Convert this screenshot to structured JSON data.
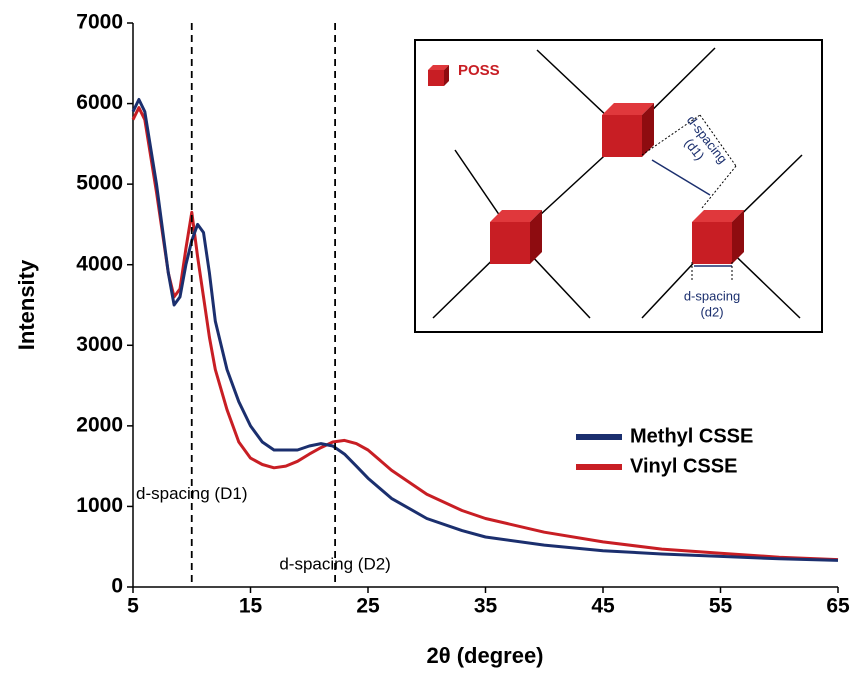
{
  "chart_data": {
    "type": "line",
    "x_label": "2θ (degree)",
    "y_label": "Intensity",
    "x": [
      5,
      5.5,
      6,
      7,
      8,
      8.5,
      9,
      9.5,
      10,
      10.5,
      11,
      11.5,
      12,
      13,
      14,
      15,
      16,
      17,
      18,
      19,
      20,
      21,
      22,
      23,
      24,
      25,
      27,
      30,
      33,
      35,
      40,
      45,
      50,
      55,
      60,
      65
    ],
    "series": [
      {
        "name": "Methyl CSSE",
        "color": "#1b2f6e",
        "values": [
          5900,
          6050,
          5900,
          5000,
          3900,
          3500,
          3600,
          4000,
          4300,
          4500,
          4400,
          3900,
          3300,
          2700,
          2300,
          2000,
          1800,
          1700,
          1700,
          1700,
          1750,
          1780,
          1750,
          1650,
          1500,
          1350,
          1100,
          850,
          700,
          620,
          520,
          450,
          410,
          380,
          350,
          330
        ]
      },
      {
        "name": "Vinyl CSSE",
        "color": "#c81e24",
        "values": [
          5800,
          5950,
          5800,
          4900,
          3900,
          3600,
          3700,
          4200,
          4650,
          4100,
          3600,
          3100,
          2700,
          2200,
          1800,
          1600,
          1520,
          1480,
          1500,
          1560,
          1650,
          1730,
          1800,
          1820,
          1780,
          1700,
          1450,
          1150,
          950,
          850,
          680,
          560,
          470,
          420,
          370,
          340
        ]
      }
    ],
    "xlim": [
      5,
      65
    ],
    "xticks": [
      5,
      15,
      25,
      35,
      45,
      55,
      65
    ],
    "ylim": [
      0,
      7000
    ],
    "yticks": [
      0,
      1000,
      2000,
      3000,
      4000,
      5000,
      6000,
      7000
    ],
    "annotations": [
      {
        "text": "d-spacing (D1)",
        "x": 10
      },
      {
        "text": "d-spacing (D2)",
        "x": 22.2
      }
    ],
    "inset": {
      "legend": "POSS",
      "d1_label": [
        "d-spacing",
        "(d1)"
      ],
      "d2_label": [
        "d-spacing",
        "(d2)"
      ]
    }
  }
}
